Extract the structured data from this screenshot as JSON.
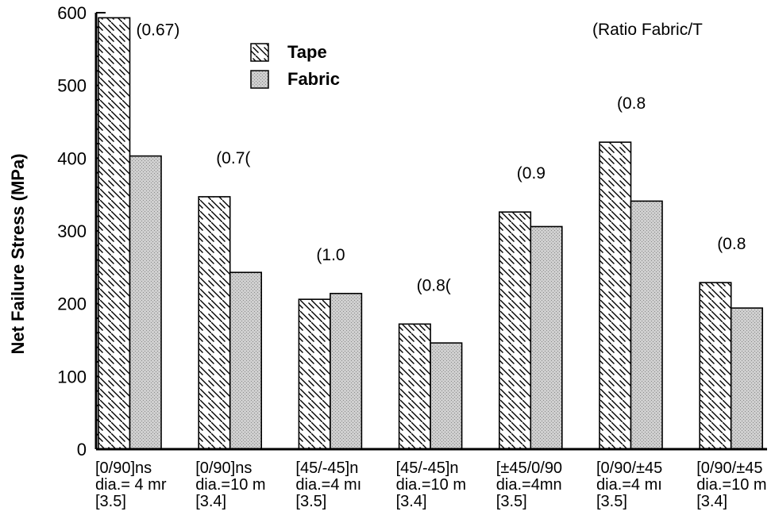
{
  "chart_data": {
    "type": "bar",
    "title": "",
    "xlabel": "",
    "ylabel": "Net Failure Stress (MPa)",
    "ylim": [
      0,
      600
    ],
    "yticks": [
      0,
      100,
      200,
      300,
      400,
      500,
      600
    ],
    "legend_position": "top-center",
    "grid": false,
    "note": "(Ratio Fabric/T",
    "categories": [
      {
        "lines": [
          "[0/90]ns",
          "dia.= 4 mr",
          "[3.5]"
        ]
      },
      {
        "lines": [
          "[0/90]ns",
          "dia.=10 m",
          "[3.4]"
        ]
      },
      {
        "lines": [
          "[45/-45]n",
          "dia.=4 mı",
          "[3.5]"
        ]
      },
      {
        "lines": [
          "[45/-45]n",
          "dia.=10 m",
          "[3.4]"
        ]
      },
      {
        "lines": [
          "[±45/0/90",
          "dia.=4mn",
          "[3.5]"
        ]
      },
      {
        "lines": [
          "[0/90/±45",
          "dia.=4 mı",
          "[3.5]"
        ]
      },
      {
        "lines": [
          "[0/90/±45",
          "dia.=10 m",
          "[3.4]"
        ]
      }
    ],
    "series": [
      {
        "name": "Tape",
        "pattern": "hatch",
        "values": [
          593,
          347,
          206,
          172,
          326,
          422,
          229
        ]
      },
      {
        "name": "Fabric",
        "pattern": "stipple",
        "values": [
          403,
          243,
          214,
          146,
          306,
          341,
          194
        ]
      }
    ],
    "ratio_labels": [
      "(0.67)",
      "(0.7(",
      "(1.0",
      "(0.8(",
      "(0.9",
      "(0.8",
      "(0.8"
    ],
    "colors": {
      "tape_fill": "#ffffff",
      "hatch": "#000000",
      "fabric_fill": "#c9c9c9"
    }
  }
}
